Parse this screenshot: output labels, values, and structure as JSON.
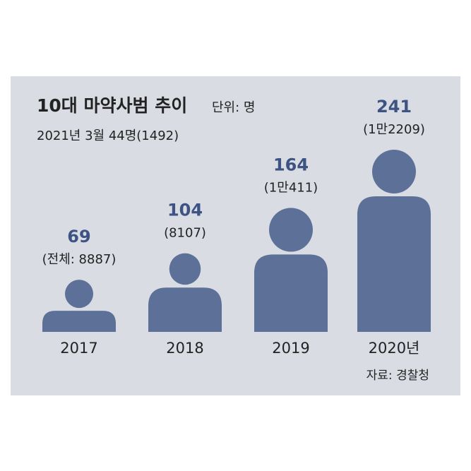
{
  "chart_data": {
    "type": "pictograph",
    "title": "10대 마약사범 추이",
    "unit": "단위: 명",
    "subtitle": "2021년 3월 44명(1492)",
    "categories": [
      "2017",
      "2018",
      "2019",
      "2020년"
    ],
    "values": [
      69,
      104,
      164,
      241
    ],
    "total_labels": [
      "(전체: 8887)",
      "(8107)",
      "(1만411)",
      "(1만2209)"
    ],
    "color": "#5d7198",
    "source": "자료: 경찰청"
  }
}
